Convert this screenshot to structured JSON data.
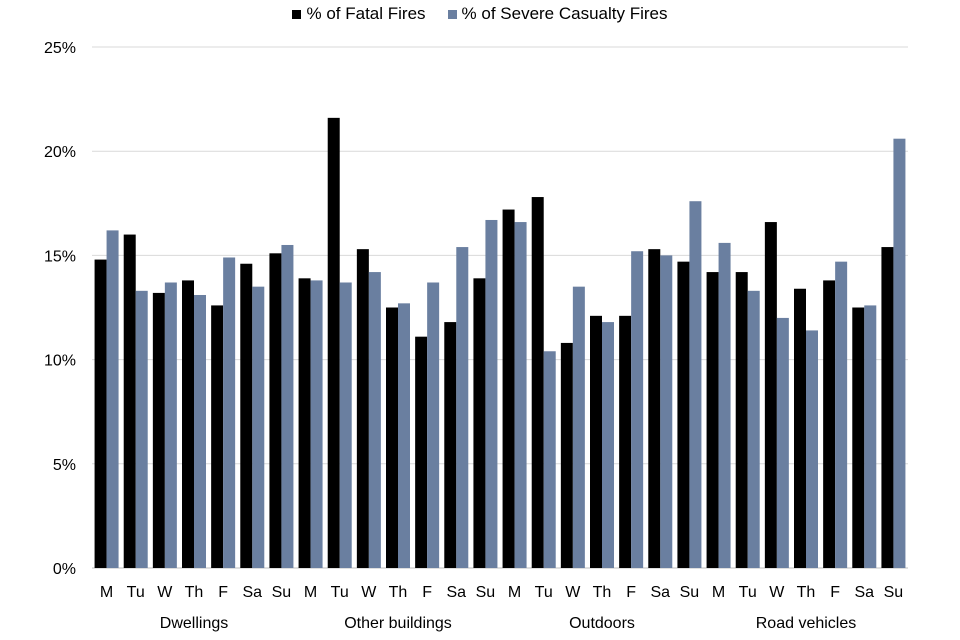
{
  "chart_data": {
    "type": "bar",
    "groups": [
      "Dwellings",
      "Other buildings",
      "Outdoors",
      "Road vehicles"
    ],
    "days": [
      "M",
      "Tu",
      "W",
      "Th",
      "F",
      "Sa",
      "Su"
    ],
    "y_ticks": [
      "0%",
      "5%",
      "10%",
      "15%",
      "20%",
      "25%"
    ],
    "ylim": [
      0,
      25
    ],
    "legend_position": "top",
    "grid": true,
    "series": [
      {
        "name": "% of Fatal Fires",
        "color": "#000000",
        "values": [
          14.8,
          16.0,
          13.2,
          13.8,
          12.6,
          14.6,
          15.1,
          13.9,
          21.6,
          15.3,
          12.5,
          11.1,
          11.8,
          13.9,
          17.2,
          17.8,
          10.8,
          12.1,
          12.1,
          15.3,
          14.7,
          14.2,
          14.2,
          16.6,
          13.4,
          13.8,
          12.5,
          15.4
        ]
      },
      {
        "name": "% of Severe Casualty Fires",
        "color": "#6a7fa0",
        "values": [
          16.2,
          13.3,
          13.7,
          13.1,
          14.9,
          13.5,
          15.5,
          13.8,
          13.7,
          14.2,
          12.7,
          13.7,
          15.4,
          16.7,
          16.6,
          10.4,
          13.5,
          11.8,
          15.2,
          15.0,
          17.6,
          15.6,
          13.3,
          12.0,
          11.4,
          14.7,
          12.6,
          20.6
        ]
      }
    ]
  }
}
